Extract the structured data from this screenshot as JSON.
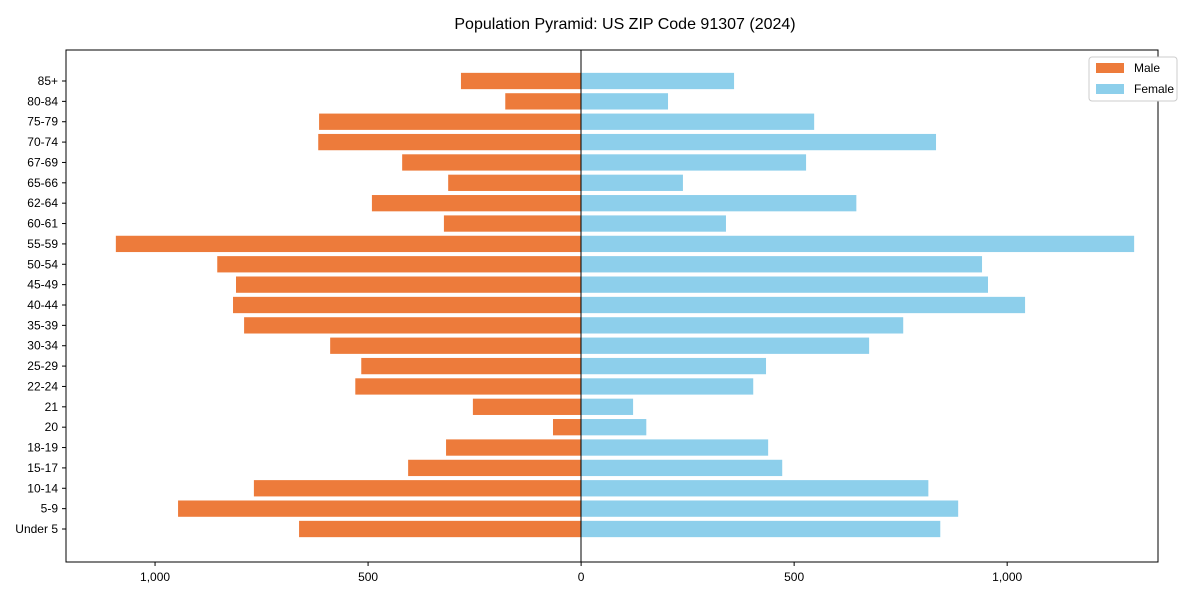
{
  "chart_data": {
    "type": "bar",
    "orientation": "horizontal",
    "title": "Population Pyramid: US ZIP Code 91307 (2024)",
    "xlabel": "",
    "ylabel": "",
    "categories": [
      "85+",
      "80-84",
      "75-79",
      "70-74",
      "67-69",
      "65-66",
      "62-64",
      "60-61",
      "55-59",
      "50-54",
      "45-49",
      "40-44",
      "35-39",
      "30-34",
      "25-29",
      "22-24",
      "21",
      "20",
      "18-19",
      "15-17",
      "10-14",
      "5-9",
      "Under 5"
    ],
    "series": [
      {
        "name": "Male",
        "color": "#ED7B3B",
        "side": "left",
        "values": [
          282,
          178,
          615,
          617,
          420,
          312,
          491,
          322,
          1092,
          854,
          810,
          817,
          791,
          589,
          516,
          530,
          254,
          66,
          317,
          406,
          768,
          946,
          662
        ]
      },
      {
        "name": "Female",
        "color": "#8DCFEB",
        "side": "right",
        "values": [
          359,
          204,
          547,
          833,
          528,
          239,
          646,
          340,
          1298,
          941,
          955,
          1042,
          756,
          676,
          434,
          404,
          122,
          153,
          439,
          472,
          815,
          885,
          843
        ]
      }
    ],
    "xlim": [
      -1209,
      1354
    ],
    "xticks": [
      -1000,
      -500,
      0,
      500,
      1000
    ],
    "xtick_labels": [
      "1,000",
      "500",
      "0",
      "500",
      "1,000"
    ],
    "grid": false,
    "legend_position": "top-right"
  }
}
